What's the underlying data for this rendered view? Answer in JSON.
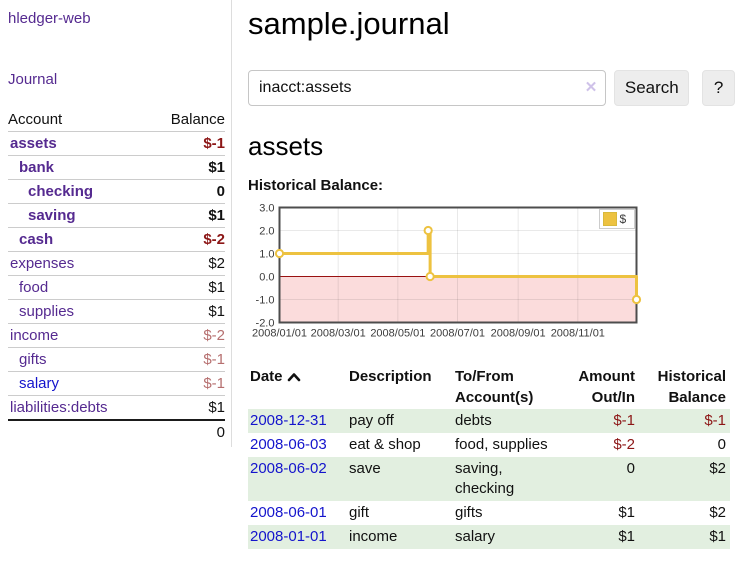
{
  "brand": {
    "label": "hledger-web"
  },
  "sidebar": {
    "journal_link": "Journal",
    "accounts": {
      "col_account": "Account",
      "col_balance": "Balance",
      "rows": [
        {
          "name": "assets",
          "balance": "$-1",
          "indent": 0,
          "bold": true,
          "name_style": "purple",
          "balance_style": "neg"
        },
        {
          "name": "bank",
          "balance": "$1",
          "indent": 1,
          "bold": true,
          "name_style": "purple",
          "balance_style": "pos"
        },
        {
          "name": "checking",
          "balance": "0",
          "indent": 2,
          "bold": true,
          "name_style": "purple",
          "balance_style": "pos"
        },
        {
          "name": "saving",
          "balance": "$1",
          "indent": 2,
          "bold": true,
          "name_style": "purple",
          "balance_style": "pos"
        },
        {
          "name": "cash",
          "balance": "$-2",
          "indent": 1,
          "bold": true,
          "name_style": "purple",
          "balance_style": "neg"
        },
        {
          "name": "expenses",
          "balance": "$2",
          "indent": 0,
          "bold": false,
          "name_style": "purple",
          "balance_style": "pos"
        },
        {
          "name": "food",
          "balance": "$1",
          "indent": 1,
          "bold": false,
          "name_style": "purple",
          "balance_style": "pos"
        },
        {
          "name": "supplies",
          "balance": "$1",
          "indent": 1,
          "bold": false,
          "name_style": "purple",
          "balance_style": "pos"
        },
        {
          "name": "income",
          "balance": "$-2",
          "indent": 0,
          "bold": false,
          "name_style": "purple",
          "balance_style": "neg-soft"
        },
        {
          "name": "gifts",
          "balance": "$-1",
          "indent": 1,
          "bold": false,
          "name_style": "purple",
          "balance_style": "neg-soft"
        },
        {
          "name": "salary",
          "balance": "$-1",
          "indent": 1,
          "bold": false,
          "name_style": "blue",
          "balance_style": "neg-soft"
        },
        {
          "name": "liabilities:debts",
          "balance": "$1",
          "indent": 0,
          "bold": false,
          "name_style": "purple",
          "balance_style": "pos"
        }
      ],
      "total": "0"
    }
  },
  "header": {
    "title": "sample.journal",
    "search": {
      "value": "inacct:assets",
      "clear_icon": "✕",
      "search_button": "Search",
      "help_button": "?"
    }
  },
  "account_view": {
    "heading": "assets",
    "chart_title": "Historical Balance:"
  },
  "chart_data": {
    "type": "line",
    "title": "Historical Balance:",
    "series": [
      {
        "name": "$",
        "color": "#edc240",
        "step": true,
        "points": [
          {
            "date": "2008-01-01",
            "value": 1
          },
          {
            "date": "2008-06-01",
            "value": 2
          },
          {
            "date": "2008-06-03",
            "value": 0
          },
          {
            "date": "2008-12-31",
            "value": -1
          }
        ]
      }
    ],
    "x_range": [
      "2008-01-01",
      "2008-12-31"
    ],
    "ylim": [
      -2,
      3
    ],
    "y_ticks": [
      {
        "value": 3,
        "label": "3.0"
      },
      {
        "value": 2,
        "label": "2.0"
      },
      {
        "value": 1,
        "label": "1.0"
      },
      {
        "value": 0,
        "label": "0.0"
      },
      {
        "value": -1,
        "label": "-1.0"
      },
      {
        "value": -2,
        "label": "-2.0"
      }
    ],
    "x_ticks": [
      {
        "date": "2008-01-01",
        "label": "2008/01/01"
      },
      {
        "date": "2008-03-01",
        "label": "2008/03/01"
      },
      {
        "date": "2008-05-01",
        "label": "2008/05/01"
      },
      {
        "date": "2008-07-01",
        "label": "2008/07/01"
      },
      {
        "date": "2008-09-01",
        "label": "2008/09/01"
      },
      {
        "date": "2008-11-01",
        "label": "2008/11/01"
      }
    ],
    "legend": {
      "position": "top-right",
      "label": "$"
    },
    "grid": true,
    "marker": "circle",
    "zero_line_color": "#991111",
    "negative_region_color": "#fbdcdc",
    "border_color": "#4d4d4d"
  },
  "register": {
    "columns": {
      "date": "Date",
      "description": "Description",
      "accounts": "To/From Account(s)",
      "amount": "Amount Out/In",
      "balance": "Historical Balance"
    },
    "sort_icon": "chevron-up-icon",
    "rows": [
      {
        "date": "2008-12-31",
        "description": "pay off",
        "accounts": "debts",
        "amount": "$-1",
        "balance": "$-1",
        "amount_style": "neg",
        "balance_style": "neg"
      },
      {
        "date": "2008-06-03",
        "description": "eat & shop",
        "accounts": "food, supplies",
        "amount": "$-2",
        "balance": "0",
        "amount_style": "neg",
        "balance_style": "pos"
      },
      {
        "date": "2008-06-02",
        "description": "save",
        "accounts": "saving, checking",
        "amount": "0",
        "balance": "$2",
        "amount_style": "pos",
        "balance_style": "pos"
      },
      {
        "date": "2008-06-01",
        "description": "gift",
        "accounts": "gifts",
        "amount": "$1",
        "balance": "$2",
        "amount_style": "pos",
        "balance_style": "pos"
      },
      {
        "date": "2008-01-01",
        "description": "income",
        "accounts": "salary",
        "amount": "$1",
        "balance": "$1",
        "amount_style": "pos",
        "balance_style": "pos"
      }
    ]
  }
}
